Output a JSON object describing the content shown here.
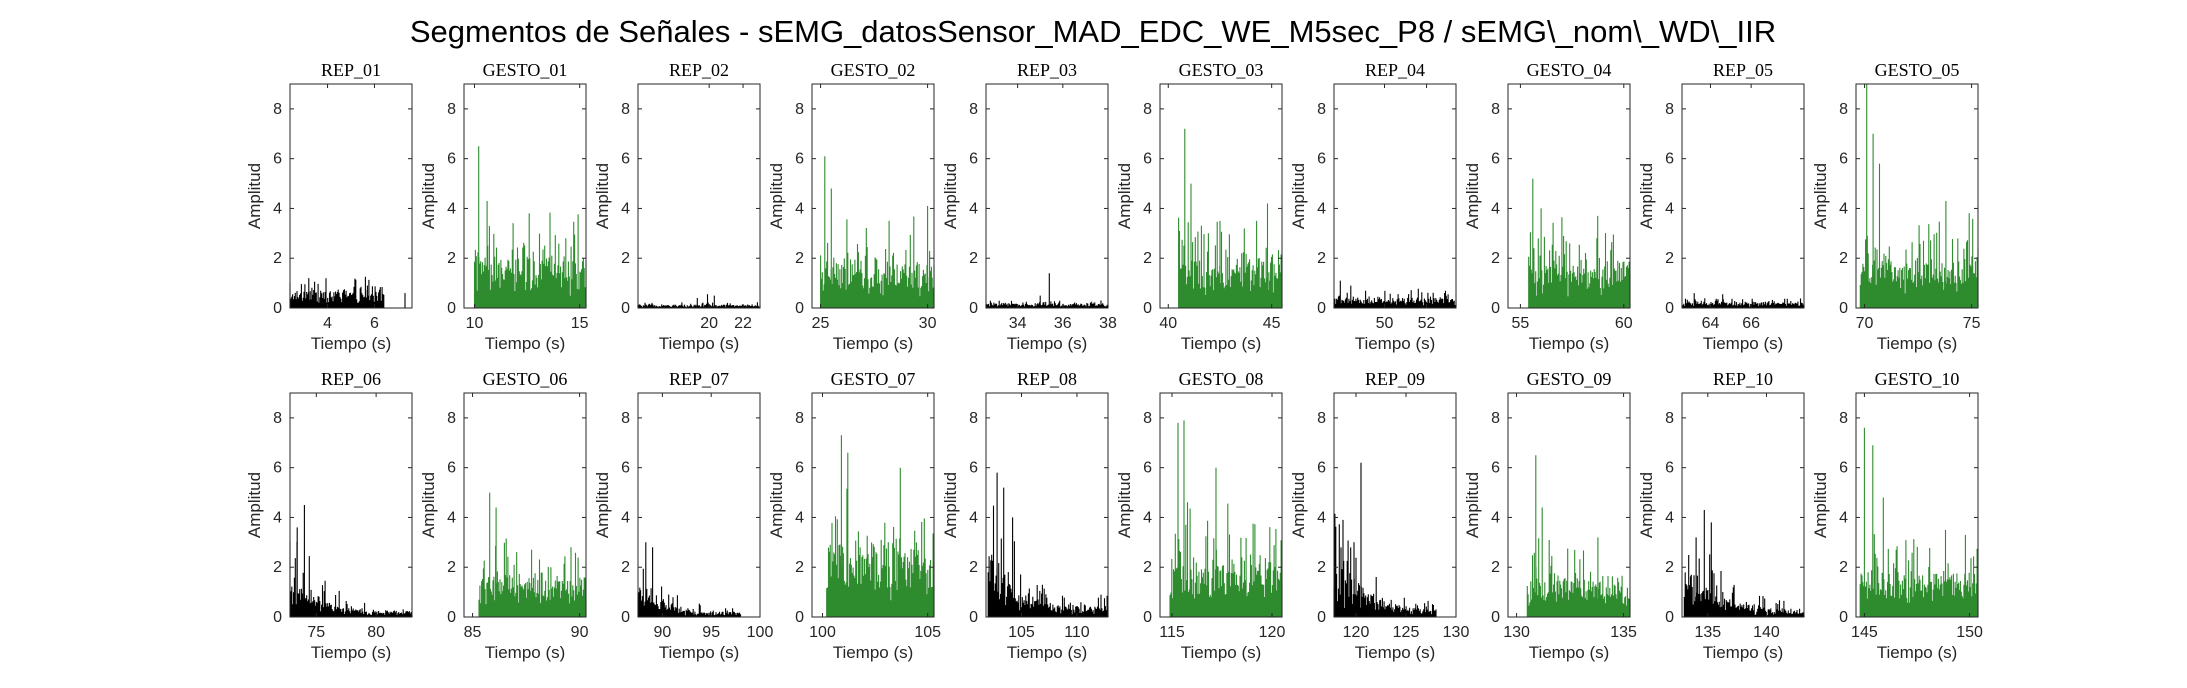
{
  "figure_title": "Segmentos de Señales - sEMG_datosSensor_MAD_EDC_WE_M5sec_P8 / sEMG\\_nom\\_WD\\_IIR",
  "colors": {
    "rep": "#000000",
    "gesto": "#2e8b2e",
    "axis": "#262626"
  },
  "chart_data": [
    {
      "type": "bar",
      "title": "REP_01",
      "xlabel": "Tiempo (s)",
      "ylabel": "Amplitud",
      "xlim": [
        2.4,
        7.6
      ],
      "ylim": [
        0,
        9
      ],
      "xticks": [
        4,
        6
      ],
      "yticks": [
        0,
        2,
        4,
        6,
        8
      ],
      "signal": {
        "start": 2.4,
        "end": 6.4,
        "mean": 0.45,
        "spread": 0.45,
        "peaks": [
          [
            3.2,
            1.2
          ],
          [
            5.7,
            0.9
          ]
        ],
        "extra": [
          [
            7.3,
            0.6
          ]
        ]
      },
      "color": "rep"
    },
    {
      "type": "bar",
      "title": "GESTO_01",
      "xlabel": "Tiempo (s)",
      "ylabel": "Amplitud",
      "xlim": [
        9.5,
        15.3
      ],
      "ylim": [
        0,
        9
      ],
      "xticks": [
        10,
        15
      ],
      "yticks": [
        0,
        2,
        4,
        6,
        8
      ],
      "signal": {
        "start": 10.0,
        "end": 15.3,
        "mean": 1.3,
        "spread": 1.6,
        "peaks": [
          [
            10.2,
            6.5
          ],
          [
            10.6,
            4.3
          ],
          [
            12.6,
            3.8
          ]
        ]
      },
      "color": "gesto"
    },
    {
      "type": "bar",
      "title": "REP_02",
      "xlabel": "Tiempo (s)",
      "ylabel": "Amplitud",
      "xlim": [
        15.8,
        23.0
      ],
      "ylim": [
        0,
        9
      ],
      "xticks": [
        20,
        22
      ],
      "yticks": [
        0,
        2,
        4,
        6,
        8
      ],
      "signal": {
        "start": 15.8,
        "end": 23.0,
        "mean": 0.08,
        "spread": 0.1,
        "peaks": [
          [
            19.9,
            0.55
          ],
          [
            20.3,
            0.5
          ],
          [
            19.3,
            0.4
          ]
        ]
      },
      "color": "rep"
    },
    {
      "type": "bar",
      "title": "GESTO_02",
      "xlabel": "Tiempo (s)",
      "ylabel": "Amplitud",
      "xlim": [
        24.6,
        30.3
      ],
      "ylim": [
        0,
        9
      ],
      "xticks": [
        25,
        30
      ],
      "yticks": [
        0,
        2,
        4,
        6,
        8
      ],
      "signal": {
        "start": 25.0,
        "end": 30.3,
        "mean": 1.2,
        "spread": 1.4,
        "peaks": [
          [
            25.2,
            6.1
          ],
          [
            25.5,
            4.8
          ],
          [
            30.0,
            4.1
          ],
          [
            28.2,
            3.5
          ]
        ]
      },
      "color": "gesto"
    },
    {
      "type": "bar",
      "title": "REP_03",
      "xlabel": "Tiempo (s)",
      "ylabel": "Amplitud",
      "xlim": [
        32.6,
        38.0
      ],
      "ylim": [
        0,
        9
      ],
      "xticks": [
        34,
        36,
        38
      ],
      "yticks": [
        0,
        2,
        4,
        6,
        8
      ],
      "signal": {
        "start": 32.6,
        "end": 38.0,
        "mean": 0.12,
        "spread": 0.12,
        "peaks": [
          [
            35.4,
            1.4
          ],
          [
            35.0,
            0.5
          ]
        ]
      },
      "color": "rep"
    },
    {
      "type": "bar",
      "title": "GESTO_03",
      "xlabel": "Tiempo (s)",
      "ylabel": "Amplitud",
      "xlim": [
        39.6,
        45.5
      ],
      "ylim": [
        0,
        9
      ],
      "xticks": [
        40,
        45
      ],
      "yticks": [
        0,
        2,
        4,
        6,
        8
      ],
      "signal": {
        "start": 40.5,
        "end": 45.5,
        "mean": 1.3,
        "spread": 1.5,
        "peaks": [
          [
            40.8,
            7.2
          ],
          [
            41.1,
            5.0
          ],
          [
            44.8,
            4.2
          ],
          [
            42.5,
            3.5
          ]
        ]
      },
      "color": "gesto"
    },
    {
      "type": "bar",
      "title": "REP_04",
      "xlabel": "Tiempo (s)",
      "ylabel": "Amplitud",
      "xlim": [
        47.6,
        53.4
      ],
      "ylim": [
        0,
        9
      ],
      "xticks": [
        50,
        52
      ],
      "yticks": [
        0,
        2,
        4,
        6,
        8
      ],
      "signal": {
        "start": 47.6,
        "end": 53.4,
        "mean": 0.25,
        "spread": 0.3,
        "peaks": [
          [
            47.9,
            1.1
          ],
          [
            48.4,
            0.9
          ]
        ]
      },
      "color": "rep"
    },
    {
      "type": "bar",
      "title": "GESTO_04",
      "xlabel": "Tiempo (s)",
      "ylabel": "Amplitud",
      "xlim": [
        54.4,
        60.3
      ],
      "ylim": [
        0,
        9
      ],
      "xticks": [
        55,
        60
      ],
      "yticks": [
        0,
        2,
        4,
        6,
        8
      ],
      "signal": {
        "start": 55.4,
        "end": 60.3,
        "mean": 1.2,
        "spread": 1.4,
        "peaks": [
          [
            55.6,
            5.2
          ],
          [
            56.0,
            4.0
          ],
          [
            58.7,
            2.8
          ]
        ]
      },
      "color": "gesto"
    },
    {
      "type": "bar",
      "title": "REP_05",
      "xlabel": "Tiempo (s)",
      "ylabel": "Amplitud",
      "xlim": [
        62.6,
        68.6
      ],
      "ylim": [
        0,
        9
      ],
      "xticks": [
        64,
        66
      ],
      "yticks": [
        0,
        2,
        4,
        6,
        8
      ],
      "signal": {
        "start": 62.6,
        "end": 68.6,
        "mean": 0.15,
        "spread": 0.2,
        "peaks": [
          [
            63.2,
            0.6
          ],
          [
            64.6,
            0.55
          ]
        ]
      },
      "color": "rep"
    },
    {
      "type": "bar",
      "title": "GESTO_05",
      "xlabel": "Tiempo (s)",
      "ylabel": "Amplitud",
      "xlim": [
        69.6,
        75.3
      ],
      "ylim": [
        0,
        9
      ],
      "xticks": [
        70,
        75
      ],
      "yticks": [
        0,
        2,
        4,
        6,
        8
      ],
      "signal": {
        "start": 69.8,
        "end": 75.3,
        "mean": 1.3,
        "spread": 1.6,
        "peaks": [
          [
            70.1,
            9.0
          ],
          [
            70.4,
            7.0
          ],
          [
            70.7,
            5.8
          ],
          [
            73.8,
            4.3
          ]
        ]
      },
      "color": "gesto"
    },
    {
      "type": "bar",
      "title": "REP_06",
      "xlabel": "Tiempo (s)",
      "ylabel": "Amplitud",
      "xlim": [
        72.8,
        83.0
      ],
      "ylim": [
        0,
        9
      ],
      "xticks": [
        75,
        80
      ],
      "yticks": [
        0,
        2,
        4,
        6,
        8
      ],
      "signal": {
        "start": 72.8,
        "end": 83.0,
        "mean": 0.5,
        "spread": 1.0,
        "decay": 3.0,
        "peaks": [
          [
            74.0,
            4.5
          ],
          [
            73.4,
            3.6
          ]
        ]
      },
      "color": "rep"
    },
    {
      "type": "bar",
      "title": "GESTO_06",
      "xlabel": "Tiempo (s)",
      "ylabel": "Amplitud",
      "xlim": [
        84.6,
        90.3
      ],
      "ylim": [
        0,
        9
      ],
      "xticks": [
        85,
        90
      ],
      "yticks": [
        0,
        2,
        4,
        6,
        8
      ],
      "signal": {
        "start": 85.3,
        "end": 90.3,
        "mean": 1.0,
        "spread": 1.3,
        "peaks": [
          [
            85.8,
            5.0
          ],
          [
            86.1,
            4.4
          ],
          [
            89.6,
            2.8
          ]
        ]
      },
      "color": "gesto"
    },
    {
      "type": "bar",
      "title": "REP_07",
      "xlabel": "Tiempo (s)",
      "ylabel": "Amplitud",
      "xlim": [
        87.5,
        100.0
      ],
      "ylim": [
        0,
        9
      ],
      "xticks": [
        90,
        95,
        100
      ],
      "yticks": [
        0,
        2,
        4,
        6,
        8
      ],
      "signal": {
        "start": 87.5,
        "end": 98.0,
        "mean": 0.4,
        "spread": 0.8,
        "decay": 3.0,
        "peaks": [
          [
            88.3,
            3.0
          ],
          [
            89.0,
            2.8
          ]
        ]
      },
      "color": "rep"
    },
    {
      "type": "bar",
      "title": "GESTO_07",
      "xlabel": "Tiempo (s)",
      "ylabel": "Amplitud",
      "xlim": [
        99.5,
        105.3
      ],
      "ylim": [
        0,
        9
      ],
      "xticks": [
        100,
        105
      ],
      "yticks": [
        0,
        2,
        4,
        6,
        8
      ],
      "signal": {
        "start": 100.2,
        "end": 105.3,
        "mean": 1.8,
        "spread": 2.0,
        "peaks": [
          [
            100.9,
            7.3
          ],
          [
            101.2,
            6.6
          ],
          [
            103.7,
            6.0
          ]
        ]
      },
      "color": "gesto"
    },
    {
      "type": "bar",
      "title": "REP_08",
      "xlabel": "Tiempo (s)",
      "ylabel": "Amplitud",
      "xlim": [
        101.8,
        112.8
      ],
      "ylim": [
        0,
        9
      ],
      "xticks": [
        105,
        110
      ],
      "yticks": [
        0,
        2,
        4,
        6,
        8
      ],
      "signal": {
        "start": 102.0,
        "end": 112.8,
        "mean": 0.8,
        "spread": 1.8,
        "decay": 3.5,
        "peaks": [
          [
            102.8,
            5.8
          ],
          [
            103.4,
            5.2
          ],
          [
            104.2,
            4.0
          ]
        ]
      },
      "color": "rep"
    },
    {
      "type": "bar",
      "title": "GESTO_08",
      "xlabel": "Tiempo (s)",
      "ylabel": "Amplitud",
      "xlim": [
        114.4,
        120.5
      ],
      "ylim": [
        0,
        9
      ],
      "xticks": [
        115,
        120
      ],
      "yticks": [
        0,
        2,
        4,
        6,
        8
      ],
      "signal": {
        "start": 114.9,
        "end": 120.5,
        "mean": 1.4,
        "spread": 1.8,
        "peaks": [
          [
            115.3,
            7.8
          ],
          [
            115.6,
            7.9
          ],
          [
            117.2,
            6.0
          ]
        ]
      },
      "color": "gesto"
    },
    {
      "type": "bar",
      "title": "REP_09",
      "xlabel": "Tiempo (s)",
      "ylabel": "Amplitud",
      "xlim": [
        117.8,
        130.0
      ],
      "ylim": [
        0,
        9
      ],
      "xticks": [
        120,
        125,
        130
      ],
      "yticks": [
        0,
        2,
        4,
        6,
        8
      ],
      "signal": {
        "start": 117.8,
        "end": 128.0,
        "mean": 0.6,
        "spread": 1.4,
        "decay": 2.5,
        "peaks": [
          [
            120.5,
            6.2
          ],
          [
            118.7,
            3.9
          ],
          [
            119.8,
            3.0
          ]
        ]
      },
      "color": "rep"
    },
    {
      "type": "bar",
      "title": "GESTO_09",
      "xlabel": "Tiempo (s)",
      "ylabel": "Amplitud",
      "xlim": [
        129.6,
        135.3
      ],
      "ylim": [
        0,
        9
      ],
      "xticks": [
        130,
        135
      ],
      "yticks": [
        0,
        2,
        4,
        6,
        8
      ],
      "signal": {
        "start": 130.5,
        "end": 135.3,
        "mean": 1.0,
        "spread": 1.3,
        "peaks": [
          [
            130.9,
            6.5
          ],
          [
            131.2,
            4.4
          ],
          [
            133.8,
            3.2
          ]
        ]
      },
      "color": "gesto"
    },
    {
      "type": "bar",
      "title": "REP_10",
      "xlabel": "Tiempo (s)",
      "ylabel": "Amplitud",
      "xlim": [
        132.8,
        143.2
      ],
      "ylim": [
        0,
        9
      ],
      "xticks": [
        135,
        140
      ],
      "yticks": [
        0,
        2,
        4,
        6,
        8
      ],
      "signal": {
        "start": 133.0,
        "end": 143.2,
        "mean": 0.4,
        "spread": 1.2,
        "decay": 2.2,
        "peaks": [
          [
            134.7,
            4.3
          ],
          [
            135.3,
            3.8
          ],
          [
            134.0,
            3.2
          ]
        ]
      },
      "color": "rep"
    },
    {
      "type": "bar",
      "title": "GESTO_10",
      "xlabel": "Tiempo (s)",
      "ylabel": "Amplitud",
      "xlim": [
        144.6,
        150.4
      ],
      "ylim": [
        0,
        9
      ],
      "xticks": [
        145,
        150
      ],
      "yticks": [
        0,
        2,
        4,
        6,
        8
      ],
      "signal": {
        "start": 144.8,
        "end": 150.4,
        "mean": 1.1,
        "spread": 1.4,
        "peaks": [
          [
            145.0,
            7.6
          ],
          [
            145.4,
            6.9
          ],
          [
            145.9,
            4.8
          ],
          [
            149.8,
            3.3
          ]
        ]
      },
      "color": "gesto"
    }
  ]
}
